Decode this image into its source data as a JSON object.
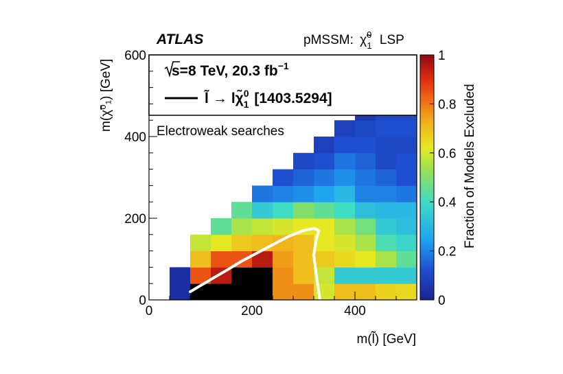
{
  "header": {
    "experiment": "ATLAS",
    "scenario": "pMSSM:",
    "scenario_lsp": "LSP"
  },
  "legend": {
    "energy_line": "s=8 TeV, 20.3 fb",
    "lumi_exp": "−1",
    "process_text": "[1403.5294]",
    "region_label": "Electroweak searches"
  },
  "chart_data": {
    "type": "heatmap",
    "xlabel": "m(l̃) [GeV]",
    "ylabel": "m(χ̃⁰₁) [GeV]",
    "zlabel": "Fraction of  Models Excluded",
    "xlim": [
      0,
      520
    ],
    "ylim": [
      0,
      600
    ],
    "zlim": [
      0,
      1
    ],
    "x_ticks": [
      0,
      200,
      400
    ],
    "y_ticks": [
      0,
      200,
      400,
      600
    ],
    "z_ticks": [
      "0",
      "0.2",
      "0.4",
      "0.6",
      "0.8",
      "1"
    ],
    "bin_size": [
      40,
      40
    ],
    "cells": [
      [
        40,
        0,
        0.03
      ],
      [
        80,
        0,
        0.0
      ],
      [
        120,
        0,
        0.0
      ],
      [
        160,
        0,
        0.0
      ],
      [
        200,
        0,
        0.0
      ],
      [
        240,
        0,
        0.77
      ],
      [
        280,
        0,
        0.77
      ],
      [
        320,
        0,
        0.6
      ],
      [
        360,
        0,
        0.7
      ],
      [
        400,
        0,
        0.7
      ],
      [
        440,
        0,
        0.66
      ],
      [
        480,
        0,
        0.65
      ],
      [
        40,
        40,
        0.03
      ],
      [
        80,
        40,
        0.85
      ],
      [
        120,
        40,
        0.95
      ],
      [
        160,
        40,
        0.0
      ],
      [
        200,
        40,
        0.0
      ],
      [
        240,
        40,
        0.77
      ],
      [
        280,
        40,
        0.7
      ],
      [
        320,
        40,
        0.58
      ],
      [
        360,
        40,
        0.35
      ],
      [
        400,
        40,
        0.35
      ],
      [
        440,
        40,
        0.35
      ],
      [
        480,
        40,
        0.35
      ],
      [
        80,
        80,
        0.7
      ],
      [
        120,
        80,
        0.85
      ],
      [
        160,
        80,
        0.85
      ],
      [
        200,
        80,
        0.95
      ],
      [
        240,
        80,
        0.75
      ],
      [
        280,
        80,
        0.7
      ],
      [
        320,
        80,
        0.68
      ],
      [
        360,
        80,
        0.65
      ],
      [
        400,
        80,
        0.62
      ],
      [
        440,
        80,
        0.55
      ],
      [
        480,
        80,
        0.45
      ],
      [
        80,
        120,
        0.58
      ],
      [
        120,
        120,
        0.62
      ],
      [
        160,
        120,
        0.68
      ],
      [
        200,
        120,
        0.7
      ],
      [
        240,
        120,
        0.72
      ],
      [
        280,
        120,
        0.7
      ],
      [
        320,
        120,
        0.62
      ],
      [
        360,
        120,
        0.6
      ],
      [
        400,
        120,
        0.55
      ],
      [
        440,
        120,
        0.42
      ],
      [
        480,
        120,
        0.38
      ],
      [
        120,
        160,
        0.45
      ],
      [
        160,
        160,
        0.55
      ],
      [
        200,
        160,
        0.58
      ],
      [
        240,
        160,
        0.6
      ],
      [
        280,
        160,
        0.62
      ],
      [
        320,
        160,
        0.62
      ],
      [
        360,
        160,
        0.55
      ],
      [
        400,
        160,
        0.48
      ],
      [
        440,
        160,
        0.35
      ],
      [
        480,
        160,
        0.32
      ],
      [
        160,
        200,
        0.45
      ],
      [
        200,
        200,
        0.35
      ],
      [
        240,
        200,
        0.4
      ],
      [
        280,
        200,
        0.5
      ],
      [
        320,
        200,
        0.45
      ],
      [
        360,
        200,
        0.4
      ],
      [
        400,
        200,
        0.32
      ],
      [
        440,
        200,
        0.3
      ],
      [
        480,
        200,
        0.3
      ],
      [
        200,
        240,
        0.18
      ],
      [
        240,
        240,
        0.2
      ],
      [
        280,
        240,
        0.22
      ],
      [
        320,
        240,
        0.25
      ],
      [
        360,
        240,
        0.3
      ],
      [
        400,
        240,
        0.2
      ],
      [
        440,
        240,
        0.2
      ],
      [
        480,
        240,
        0.18
      ],
      [
        240,
        280,
        0.12
      ],
      [
        280,
        280,
        0.15
      ],
      [
        320,
        280,
        0.18
      ],
      [
        360,
        280,
        0.22
      ],
      [
        400,
        280,
        0.18
      ],
      [
        440,
        280,
        0.15
      ],
      [
        480,
        280,
        0.12
      ],
      [
        280,
        320,
        0.1
      ],
      [
        320,
        320,
        0.12
      ],
      [
        360,
        320,
        0.18
      ],
      [
        400,
        320,
        0.15
      ],
      [
        440,
        320,
        0.1
      ],
      [
        480,
        320,
        0.12
      ],
      [
        320,
        360,
        0.08
      ],
      [
        360,
        360,
        0.12
      ],
      [
        400,
        360,
        0.12
      ],
      [
        440,
        360,
        0.1
      ],
      [
        480,
        360,
        0.1
      ],
      [
        360,
        400,
        0.08
      ],
      [
        400,
        400,
        0.1
      ],
      [
        440,
        400,
        0.12
      ],
      [
        480,
        400,
        0.12
      ],
      [
        400,
        440,
        0.06
      ],
      [
        440,
        440,
        0.1
      ],
      [
        480,
        440,
        0.1
      ]
    ],
    "contour": [
      [
        80,
        20
      ],
      [
        120,
        50
      ],
      [
        150,
        72
      ],
      [
        180,
        95
      ],
      [
        210,
        115
      ],
      [
        240,
        135
      ],
      [
        270,
        155
      ],
      [
        300,
        170
      ],
      [
        320,
        175
      ],
      [
        330,
        170
      ],
      [
        325,
        150
      ],
      [
        320,
        110
      ],
      [
        325,
        60
      ],
      [
        332,
        0
      ]
    ],
    "colormap": "rainbow"
  }
}
